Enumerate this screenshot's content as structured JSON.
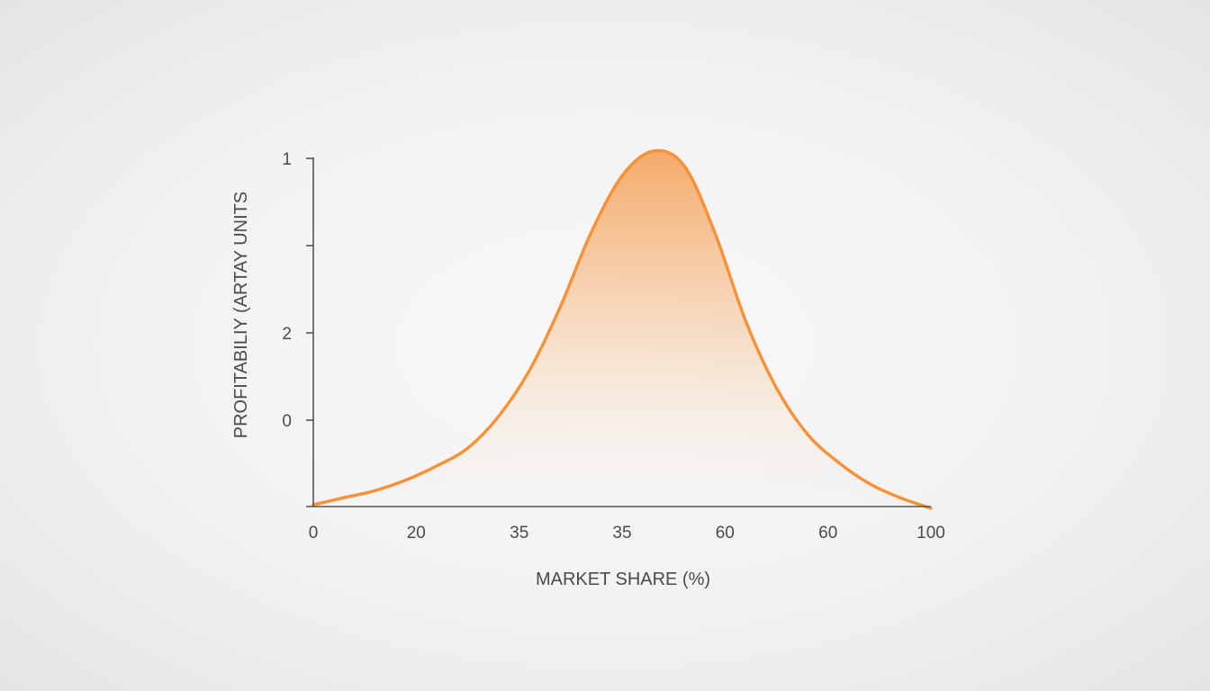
{
  "chart_data": {
    "type": "area",
    "title": "",
    "xlabel": "MARKET SHARE (%)",
    "ylabel": "PROFITABILIY (ARTAY UNITS",
    "x_tick_labels": [
      "0",
      "20",
      "35",
      "35",
      "60",
      "60",
      "100"
    ],
    "y_tick_labels": [
      "1",
      "",
      "2",
      "0"
    ],
    "xlim": [
      0,
      100
    ],
    "ylim": [
      0,
      1
    ],
    "series": [
      {
        "x": [
          0,
          5,
          10,
          15,
          20,
          25,
          30,
          35,
          40,
          45,
          50,
          55,
          60,
          65,
          70,
          75,
          80,
          85,
          90,
          95,
          100
        ],
        "y": [
          0.0,
          0.02,
          0.04,
          0.07,
          0.11,
          0.16,
          0.25,
          0.38,
          0.56,
          0.77,
          0.93,
          1.0,
          0.96,
          0.77,
          0.52,
          0.33,
          0.2,
          0.12,
          0.06,
          0.02,
          -0.01
        ]
      }
    ],
    "color": "#f5923a",
    "grid": false,
    "legend": "none"
  }
}
